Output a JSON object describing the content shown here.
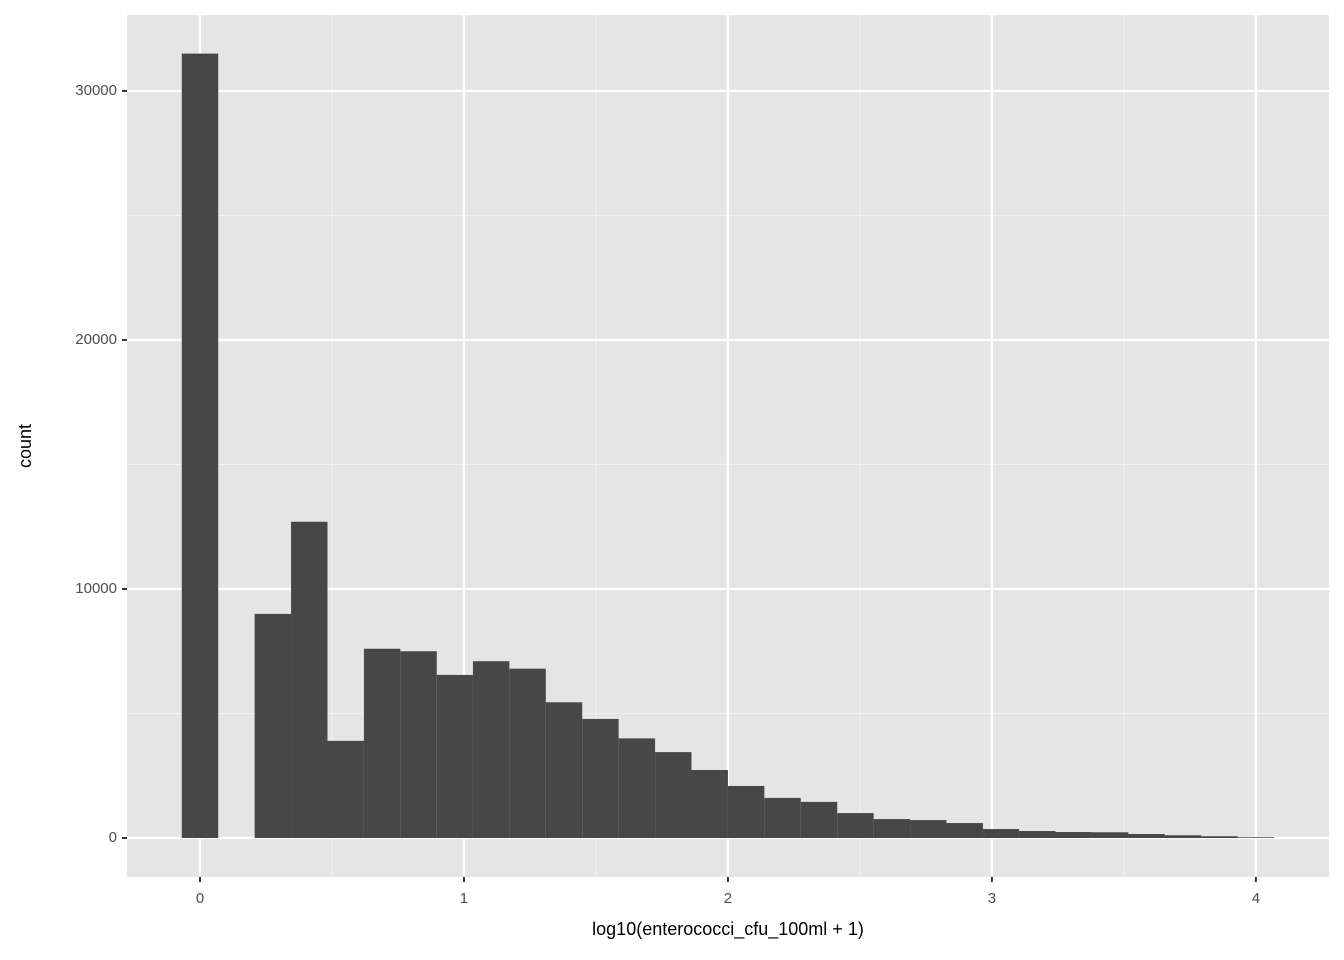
{
  "chart_data": {
    "type": "histogram",
    "x_label": "log10(enterococci_cfu_100ml + 1)",
    "y_label": "count",
    "bins": [
      -0.069,
      0.069,
      0.207,
      0.345,
      0.483,
      0.621,
      0.759,
      0.897,
      1.034,
      1.172,
      1.31,
      1.448,
      1.586,
      1.724,
      1.862,
      2.0,
      2.138,
      2.276,
      2.414,
      2.552,
      2.69,
      2.828,
      2.966,
      3.103,
      3.241,
      3.379,
      3.517,
      3.655,
      3.793,
      3.931,
      4.069
    ],
    "values": [
      31500,
      0,
      9000,
      12700,
      3900,
      7600,
      7500,
      6550,
      7100,
      6800,
      5450,
      4780,
      4000,
      3450,
      2730,
      2090,
      1610,
      1450,
      1000,
      760,
      720,
      600,
      360,
      280,
      240,
      230,
      160,
      110,
      70,
      30
    ],
    "color": "#474747",
    "xlim": [
      -0.2765,
      4.277
    ],
    "xticks": [
      0,
      1,
      2,
      3,
      4
    ],
    "ylim": [
      -1566,
      33050
    ],
    "yticks": [
      0,
      10000,
      20000,
      30000
    ],
    "grid": true,
    "panel_color": "#e5e5e5"
  }
}
